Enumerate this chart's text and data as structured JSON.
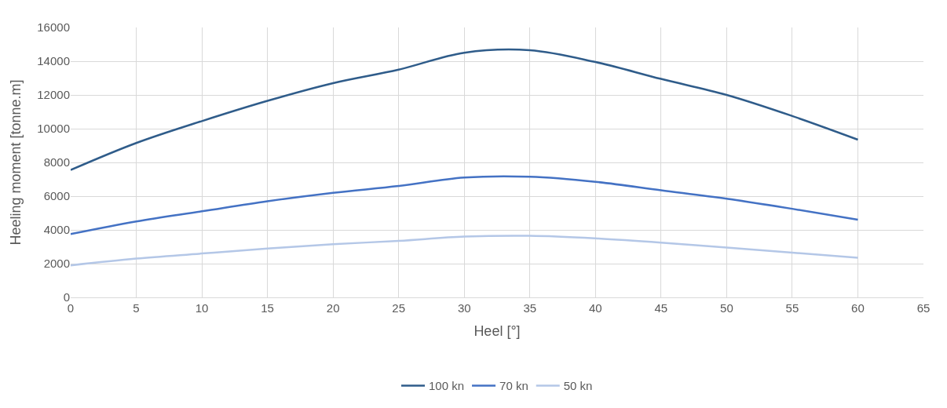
{
  "chart_data": {
    "type": "line",
    "xlabel": "Heel [°]",
    "ylabel": "Heeling moment [tonne.m]",
    "x": [
      0,
      5,
      10,
      15,
      20,
      25,
      30,
      35,
      40,
      45,
      50,
      55,
      60
    ],
    "series": [
      {
        "name": "100 kn",
        "color": "#2f5c8a",
        "values": [
          7550,
          9150,
          10450,
          11650,
          12700,
          13500,
          14500,
          14650,
          13950,
          12950,
          12000,
          10750,
          9350
        ]
      },
      {
        "name": "70 kn",
        "color": "#4472c4",
        "values": [
          3750,
          4500,
          5100,
          5700,
          6200,
          6600,
          7100,
          7150,
          6850,
          6350,
          5850,
          5250,
          4600
        ]
      },
      {
        "name": "50 kn",
        "color": "#b4c7e7",
        "values": [
          1900,
          2300,
          2600,
          2900,
          3150,
          3350,
          3600,
          3650,
          3500,
          3250,
          2950,
          2650,
          2350
        ]
      }
    ],
    "xlim": [
      0,
      65
    ],
    "xticks": [
      0,
      5,
      10,
      15,
      20,
      25,
      30,
      35,
      40,
      45,
      50,
      55,
      60,
      65
    ],
    "ylim": [
      0,
      16000
    ],
    "yticks": [
      0,
      2000,
      4000,
      6000,
      8000,
      10000,
      12000,
      14000,
      16000
    ],
    "grid": true,
    "legend": "bottom",
    "marker": "none",
    "line_style": "solid"
  }
}
